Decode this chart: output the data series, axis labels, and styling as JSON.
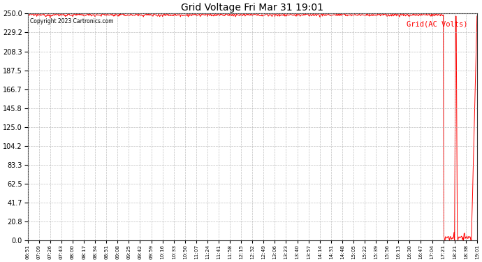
{
  "title": "Grid Voltage Fri Mar 31 19:01",
  "copyright": "Copyright 2023 Cartronics.com",
  "legend_label": "Grid(AC Volts)",
  "legend_color": "#ff0000",
  "line_color": "#ff0000",
  "background_color": "#ffffff",
  "grid_color": "#b0b0b0",
  "ylim": [
    0.0,
    250.0
  ],
  "yticks": [
    0.0,
    20.8,
    41.7,
    62.5,
    83.3,
    104.2,
    125.0,
    145.8,
    166.7,
    187.5,
    208.3,
    229.2,
    250.0
  ],
  "xtick_labels": [
    "06:51",
    "07:09",
    "07:26",
    "07:43",
    "08:00",
    "08:17",
    "08:34",
    "08:51",
    "09:08",
    "09:25",
    "09:42",
    "09:59",
    "10:16",
    "10:33",
    "10:50",
    "11:07",
    "11:24",
    "11:41",
    "11:58",
    "12:15",
    "12:32",
    "12:49",
    "13:06",
    "13:23",
    "13:40",
    "13:57",
    "14:14",
    "14:31",
    "14:48",
    "15:05",
    "15:22",
    "15:39",
    "15:56",
    "16:13",
    "16:30",
    "16:47",
    "17:04",
    "17:21",
    "18:21",
    "18:38",
    "19:01"
  ],
  "figsize": [
    6.9,
    3.75
  ],
  "dpi": 100
}
